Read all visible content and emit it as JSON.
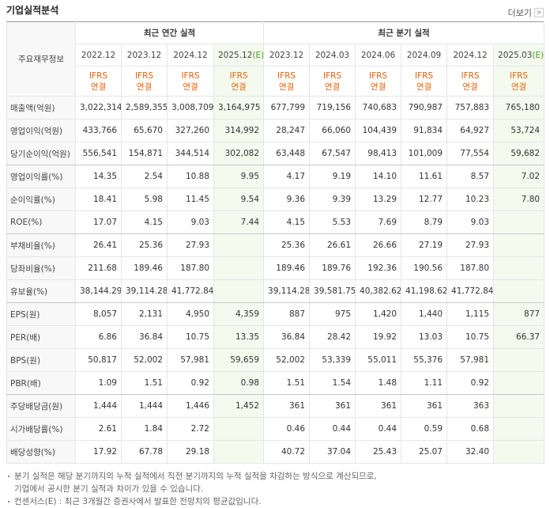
{
  "header": {
    "title": "기업실적분석",
    "more": "더보기"
  },
  "table": {
    "corner": "주요재무정보",
    "groups": [
      {
        "label": "최근 연간 실적",
        "periods": [
          {
            "period": "2022.12",
            "std": "IFRS",
            "basis": "연결"
          },
          {
            "period": "2023.12",
            "std": "IFRS",
            "basis": "연결"
          },
          {
            "period": "2024.12",
            "std": "IFRS",
            "basis": "연결"
          },
          {
            "period": "2025.12",
            "mark": "(E)",
            "std": "IFRS",
            "basis": "연결"
          }
        ]
      },
      {
        "label": "최근 분기 실적",
        "periods": [
          {
            "period": "2023.12",
            "std": "IFRS",
            "basis": "연결"
          },
          {
            "period": "2024.03",
            "std": "IFRS",
            "basis": "연결"
          },
          {
            "period": "2024.06",
            "std": "IFRS",
            "basis": "연결"
          },
          {
            "period": "2024.09",
            "std": "IFRS",
            "basis": "연결"
          },
          {
            "period": "2024.12",
            "std": "IFRS",
            "basis": "연결"
          },
          {
            "period": "2025.03",
            "mark": "(E)",
            "std": "IFRS",
            "basis": "연결"
          }
        ]
      }
    ],
    "rows": [
      {
        "label": "매출액(억원)",
        "values": [
          "3,022,314",
          "2,589,355",
          "3,008,709",
          "3,164,975",
          "677,799",
          "719,156",
          "740,683",
          "790,987",
          "757,883",
          "765,180"
        ]
      },
      {
        "label": "영업이익(억원)",
        "values": [
          "433,766",
          "65,670",
          "327,260",
          "314,992",
          "28,247",
          "66,060",
          "104,439",
          "91,834",
          "64,927",
          "53,724"
        ]
      },
      {
        "label": "당기순이익(억원)",
        "values": [
          "556,541",
          "154,871",
          "344,514",
          "302,082",
          "63,448",
          "67,547",
          "98,413",
          "101,009",
          "77,554",
          "59,682"
        ]
      },
      {
        "label": "영업이익률(%)",
        "values": [
          "14.35",
          "2.54",
          "10.88",
          "9.95",
          "4.17",
          "9.19",
          "14.10",
          "11.61",
          "8.57",
          "7.02"
        ]
      },
      {
        "label": "순이익률(%)",
        "values": [
          "18.41",
          "5.98",
          "11.45",
          "9.54",
          "9.36",
          "9.39",
          "13.29",
          "12.77",
          "10.23",
          "7.80"
        ]
      },
      {
        "label": "ROE(%)",
        "values": [
          "17.07",
          "4.15",
          "9.03",
          "7.44",
          "4.15",
          "5.53",
          "7.69",
          "8.79",
          "9.03",
          null
        ]
      },
      {
        "label": "부채비율(%)",
        "values": [
          "26.41",
          "25.36",
          "27.93",
          null,
          "25.36",
          "26.61",
          "26.66",
          "27.19",
          "27.93",
          null
        ]
      },
      {
        "label": "당좌비율(%)",
        "values": [
          "211.68",
          "189.46",
          "187.80",
          null,
          "189.46",
          "189.76",
          "192.36",
          "190.56",
          "187.80",
          null
        ]
      },
      {
        "label": "유보율(%)",
        "values": [
          "38,144.29",
          "39,114.28",
          "41,772.84",
          null,
          "39,114.28",
          "39,581.75",
          "40,382.62",
          "41,198.62",
          "41,772.84",
          null
        ]
      },
      {
        "label": "EPS(원)",
        "values": [
          "8,057",
          "2,131",
          "4,950",
          "4,359",
          "887",
          "975",
          "1,420",
          "1,440",
          "1,115",
          "877"
        ]
      },
      {
        "label": "PER(배)",
        "values": [
          "6.86",
          "36.84",
          "10.75",
          "13.35",
          "36.84",
          "28.42",
          "19.92",
          "13.03",
          "10.75",
          "66.37"
        ]
      },
      {
        "label": "BPS(원)",
        "values": [
          "50,817",
          "52,002",
          "57,981",
          "59,659",
          "52,002",
          "53,339",
          "55,011",
          "55,376",
          "57,981",
          null
        ]
      },
      {
        "label": "PBR(배)",
        "values": [
          "1.09",
          "1.51",
          "0.92",
          "0.98",
          "1.51",
          "1.54",
          "1.48",
          "1.11",
          "0.92",
          null
        ]
      },
      {
        "label": "주당배당금(원)",
        "values": [
          "1,444",
          "1,444",
          "1,446",
          "1,452",
          "361",
          "361",
          "361",
          "361",
          "363",
          null
        ]
      },
      {
        "label": "시가배당률(%)",
        "values": [
          "2.61",
          "1.84",
          "2.72",
          null,
          "0.46",
          "0.44",
          "0.44",
          "0.59",
          "0.68",
          null
        ]
      },
      {
        "label": "배당성향(%)",
        "values": [
          "17.92",
          "67.78",
          "29.18",
          null,
          "40.72",
          "37.04",
          "25.43",
          "25.07",
          "32.40",
          null
        ]
      }
    ]
  },
  "notes": [
    "분기 실적은 해당 분기까지의 누적 실적에서 직전 분기까지의 누적 실적을 차감하는 방식으로 계산되므로,",
    "기업에서 공시한 분기 실적과 차이가 있을 수 있습니다.",
    "컨센서스(E) : 최근 3개월간 증권사에서 발표한 전망치의 평균값입니다."
  ]
}
